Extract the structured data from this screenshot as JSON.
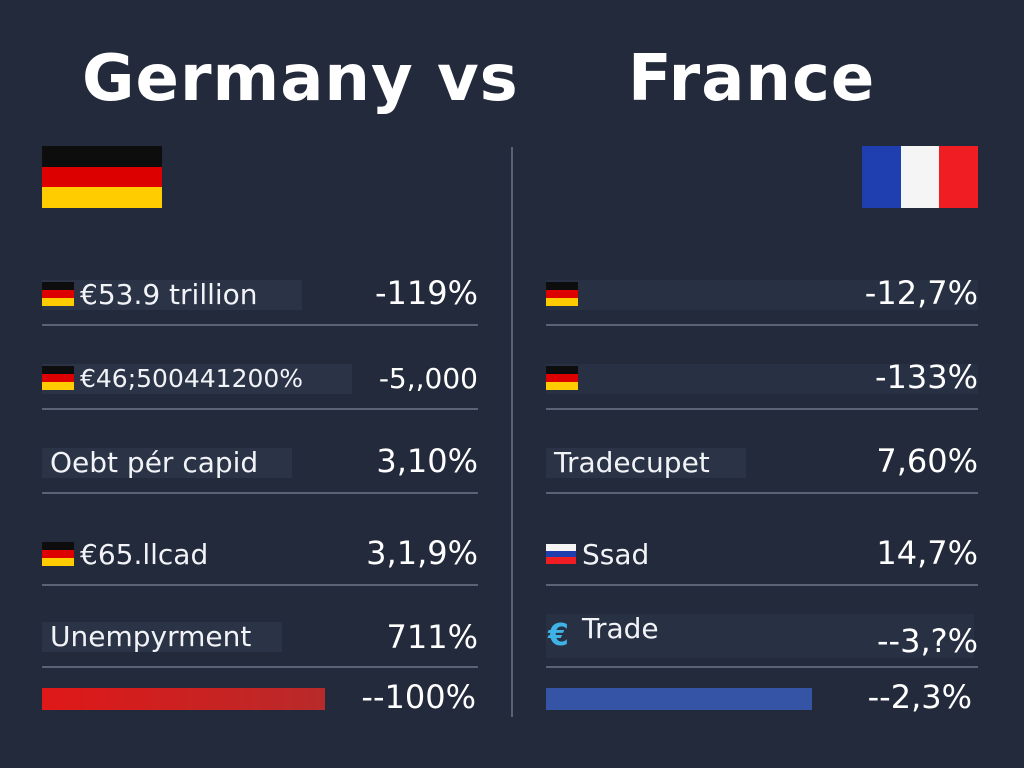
{
  "header": {
    "left_title": "Germany vs",
    "right_title": "France"
  },
  "colors": {
    "background": "#232a3b",
    "germany_bar": "#d81f1f",
    "france_bar": "#3554a6"
  },
  "germany": {
    "rows": [
      {
        "label": "€53.9 trillion",
        "value": "-119%",
        "icon": "germany-flag-icon"
      },
      {
        "label": "€46;500441200%",
        "value": "-5,,000",
        "icon": "germany-flag-icon"
      },
      {
        "label": "Oebt pér capid",
        "value": "3,10%",
        "icon": ""
      },
      {
        "label": "€65.llcad",
        "value": "3,1,9%",
        "icon": "germany-flag-icon"
      },
      {
        "label": "Unempyrment",
        "value": "711%",
        "icon": ""
      }
    ],
    "bar_value": "--100%"
  },
  "france": {
    "rows": [
      {
        "label": "",
        "value": "-12,7%",
        "icon": "germany-flag-icon"
      },
      {
        "label": "",
        "value": "-133%",
        "icon": "germany-flag-icon"
      },
      {
        "label": "Tradecupet",
        "value": "7,60%",
        "icon": ""
      },
      {
        "label": "Ssad",
        "value": "14,7%",
        "icon": "russia-flag-icon"
      },
      {
        "label": "Trade",
        "value": "--3,?%",
        "icon": "euro-icon"
      }
    ],
    "bar_value": "--2,3%"
  }
}
